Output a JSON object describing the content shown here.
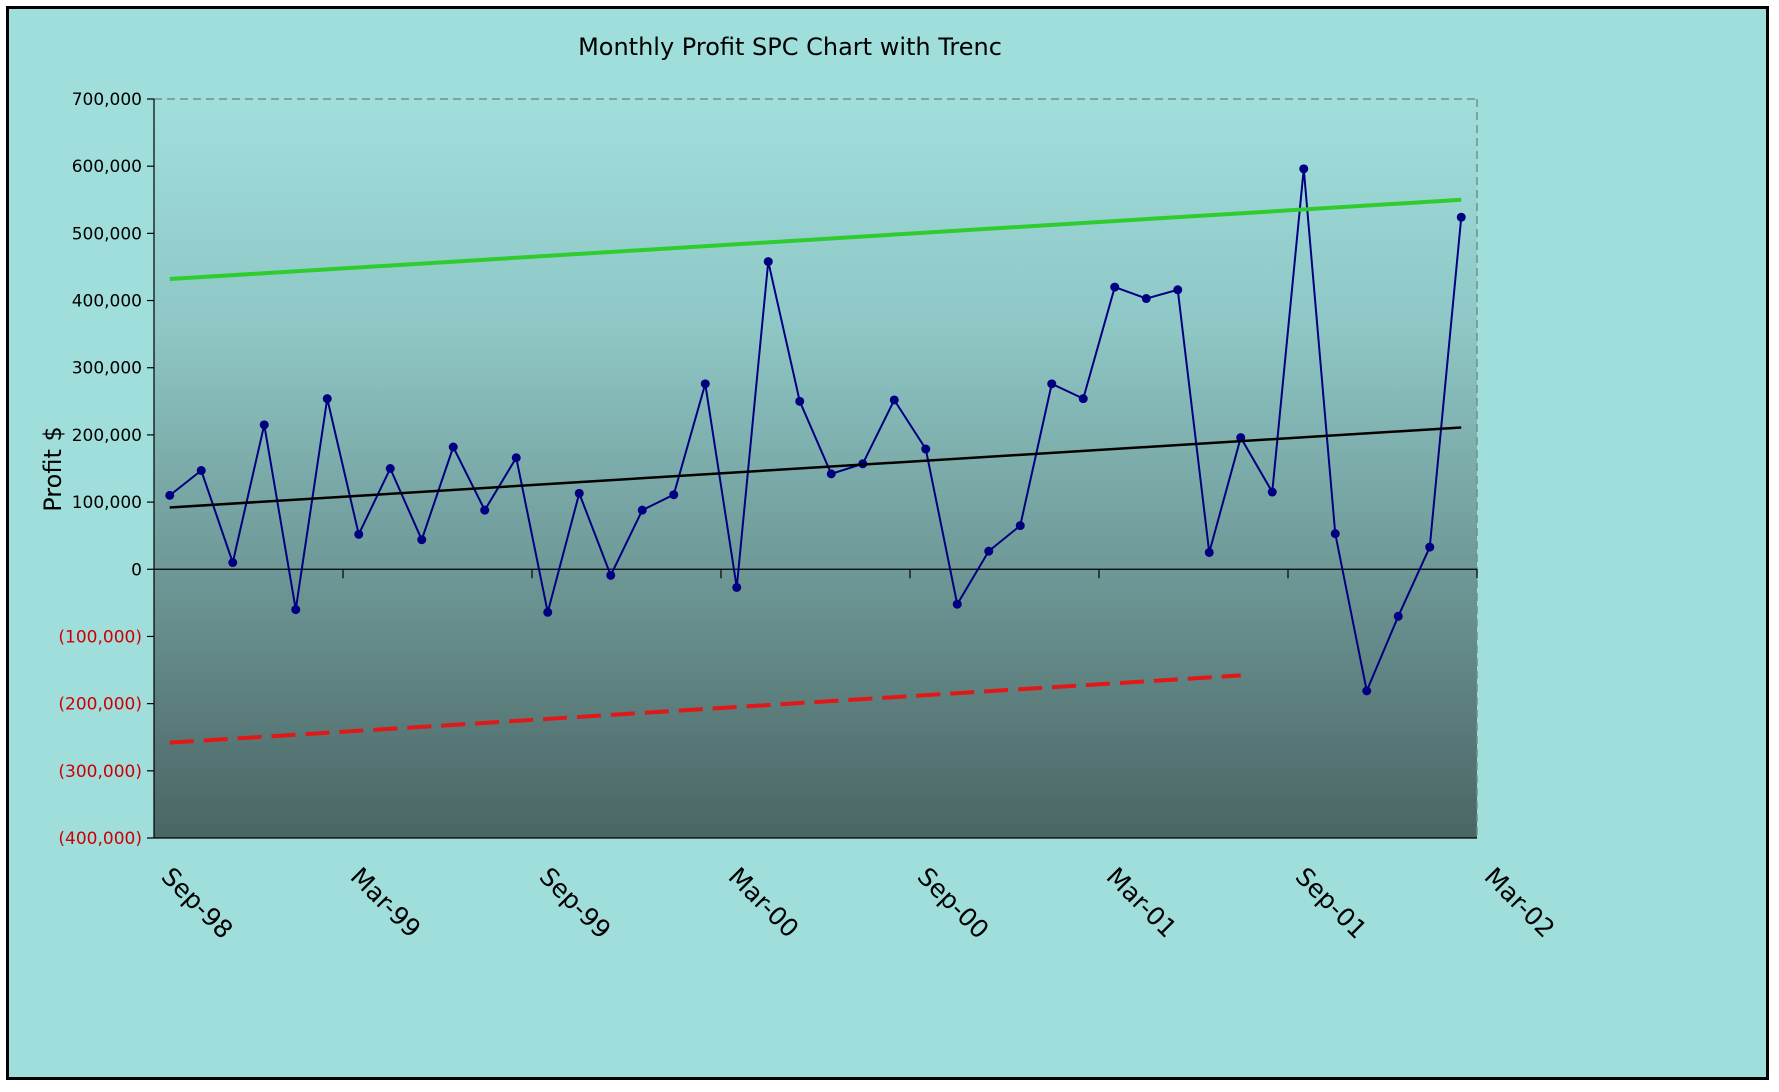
{
  "chart_data": {
    "type": "line",
    "title": "Monthly Profit SPC Chart with Trenc",
    "ylabel": "Profit $",
    "xlabel": "",
    "ylim": [
      -400000,
      700000
    ],
    "y_ticks": [
      {
        "value": 700000,
        "label": "700,000",
        "color": "#000000"
      },
      {
        "value": 600000,
        "label": "600,000",
        "color": "#000000"
      },
      {
        "value": 500000,
        "label": "500,000",
        "color": "#000000"
      },
      {
        "value": 400000,
        "label": "400,000",
        "color": "#000000"
      },
      {
        "value": 300000,
        "label": "300,000",
        "color": "#000000"
      },
      {
        "value": 200000,
        "label": "200,000",
        "color": "#000000"
      },
      {
        "value": 100000,
        "label": "100,000",
        "color": "#000000"
      },
      {
        "value": 0,
        "label": "0",
        "color": "#000000"
      },
      {
        "value": -100000,
        "label": "(100,000)",
        "color": "#cc0000"
      },
      {
        "value": -200000,
        "label": "(200,000)",
        "color": "#cc0000"
      },
      {
        "value": -300000,
        "label": "(300,000)",
        "color": "#cc0000"
      },
      {
        "value": -400000,
        "label": "(400,000)",
        "color": "#cc0000"
      }
    ],
    "x_tick_labels": [
      "Sep-98",
      "Mar-99",
      "Sep-99",
      "Mar-00",
      "Sep-00",
      "Mar-01",
      "Sep-01",
      "Mar-02"
    ],
    "months": [
      "Oct-98",
      "Nov-98",
      "Dec-98",
      "Jan-99",
      "Feb-99",
      "Mar-99",
      "Apr-99",
      "May-99",
      "Jun-99",
      "Jul-99",
      "Aug-99",
      "Sep-99",
      "Oct-99",
      "Nov-99",
      "Dec-99",
      "Jan-00",
      "Feb-00",
      "Mar-00",
      "Apr-00",
      "May-00",
      "Jun-00",
      "Jul-00",
      "Aug-00",
      "Sep-00",
      "Oct-00",
      "Nov-00",
      "Dec-00",
      "Jan-01",
      "Feb-01",
      "Mar-01",
      "Apr-01",
      "May-01",
      "Jun-01",
      "Jul-01",
      "Aug-01",
      "Sep-01",
      "Oct-01",
      "Nov-01",
      "Dec-01",
      "Jan-02",
      "Feb-02",
      "Mar-02"
    ],
    "grid": false,
    "legend": "none",
    "series": [
      {
        "role": "profit",
        "color": "#000080",
        "markers": true,
        "values": [
          110000,
          147000,
          10000,
          215000,
          -60000,
          254000,
          52000,
          150000,
          44000,
          182000,
          88000,
          166000,
          -64000,
          113000,
          -9000,
          88000,
          111000,
          276000,
          -27000,
          458000,
          250000,
          142000,
          157000,
          252000,
          179000,
          -52000,
          27000,
          65000,
          276000,
          254000,
          420000,
          403000,
          416000,
          25000,
          196000,
          115000,
          596000,
          53000,
          -181000,
          -70000,
          33000,
          524000
        ]
      },
      {
        "role": "upper-control-limit",
        "color": "#2ecc2e",
        "style": "solid",
        "start": [
          "Oct-98",
          432000
        ],
        "end": [
          "Mar-02",
          550000
        ]
      },
      {
        "role": "trend",
        "color": "#000000",
        "style": "solid",
        "start": [
          "Oct-98",
          92000
        ],
        "end": [
          "Mar-02",
          211000
        ]
      },
      {
        "role": "lower-control-limit",
        "color": "#e01818",
        "style": "dashed",
        "start": [
          "Oct-98",
          -258000
        ],
        "end": [
          "Aug-01",
          -158000
        ]
      }
    ]
  },
  "colors": {
    "frame_bg": "#a0dedc",
    "plot_top": "#a0dedc",
    "plot_bottom": "#4a6564"
  }
}
